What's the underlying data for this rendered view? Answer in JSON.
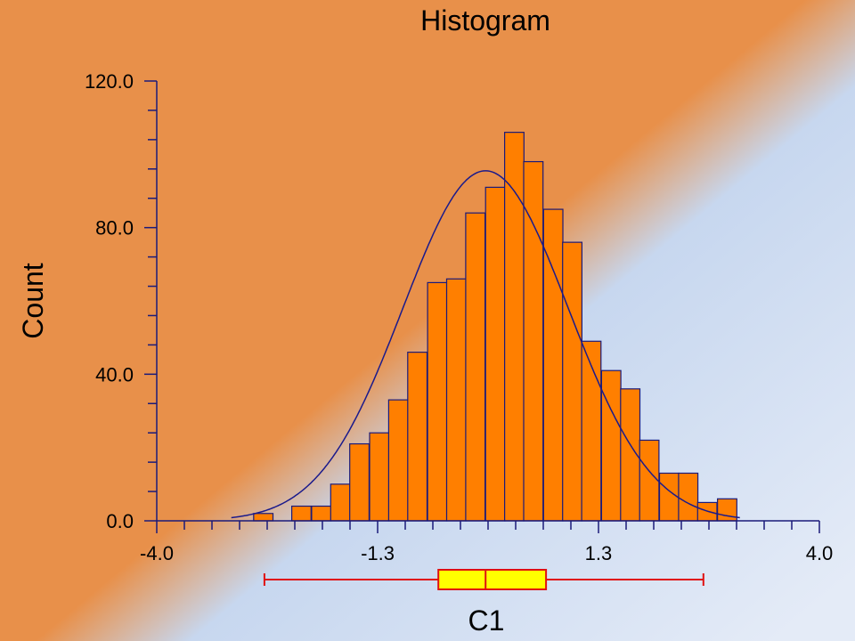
{
  "colors": {
    "background_orange": "#E8904A",
    "background_blue": "#C5D6EE",
    "bar_fill": "#FF7F00",
    "bar_stroke": "#1A1A7A",
    "curve": "#1A1A8C",
    "axis": "#1A1A7A",
    "box_fill": "#FFFF00",
    "box_stroke": "#E01010"
  },
  "chart_data": {
    "type": "bar",
    "title": "Histogram",
    "xlabel": "C1",
    "ylabel": "Count",
    "xlim": [
      -4.0,
      4.0
    ],
    "ylim": [
      0,
      120
    ],
    "x_tick_labels": [
      "-4.0",
      "-1.3",
      "1.3",
      "4.0"
    ],
    "x_tick_values": [
      -4.0,
      -1.333,
      1.333,
      4.0
    ],
    "y_tick_labels": [
      "0.0",
      "40.0",
      "80.0",
      "120.0"
    ],
    "y_tick_values": [
      0,
      40,
      80,
      120
    ],
    "bin_width": 0.2333,
    "bin_edges": [
      -2.83,
      -2.6,
      -2.37,
      -2.13,
      -1.9,
      -1.67,
      -1.43,
      -1.2,
      -0.97,
      -0.73,
      -0.5,
      -0.27,
      -0.03,
      0.2,
      0.43,
      0.67,
      0.9,
      1.13,
      1.37,
      1.6,
      1.83,
      2.07,
      2.3,
      2.53,
      2.77
    ],
    "bin_counts": [
      2,
      0,
      4,
      4,
      10,
      21,
      24,
      33,
      46,
      65,
      66,
      84,
      91,
      106,
      98,
      85,
      76,
      49,
      41,
      36,
      22,
      13,
      13,
      5,
      6
    ],
    "normal_fit": {
      "mean": -0.03,
      "sd": 1.0,
      "n": 1000,
      "peak": 95.5
    },
    "boxplot": {
      "min": -2.7,
      "q1": -0.6,
      "median": -0.03,
      "q3": 0.7,
      "max": 2.6
    }
  }
}
